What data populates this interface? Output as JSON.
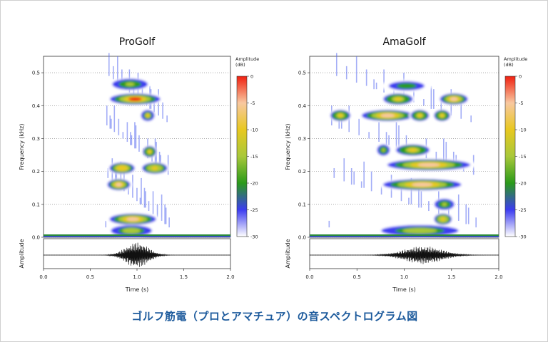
{
  "caption": "ゴルフ筋電（プロとアマチュア）の音スペクトログラム図",
  "colors": {
    "caption": "#1c5a9c",
    "colorbar_stops": [
      "#ffffff",
      "#3c3cf0",
      "#2a9a1a",
      "#a8c83a",
      "#e8c820",
      "#f8c8a0",
      "#f02010"
    ]
  },
  "chart_data": [
    {
      "type": "heatmap",
      "title": "ProGolf",
      "xlabel": "Time (s)",
      "ylabel": "Frequency (kHz)",
      "waveform_ylabel": "Amplitude",
      "xlim": [
        0.0,
        2.0
      ],
      "ylim": [
        0.0,
        0.55
      ],
      "x_ticks": [
        "0.0",
        "0.5",
        "1.0",
        "1.5",
        "2.0"
      ],
      "y_ticks": [
        "0.0",
        "0.1",
        "0.2",
        "0.3",
        "0.4",
        "0.5"
      ],
      "grid": "dotted horizontal",
      "colorbar": {
        "label": "Amplitude\n(dB)",
        "ticks": [
          "0",
          "-5",
          "-10",
          "-15",
          "-20",
          "-25",
          "-30"
        ],
        "range": [
          -30,
          0
        ]
      },
      "blobs": [
        {
          "t0": 0.66,
          "t1": 1.3,
          "f": 0.42,
          "db": -2
        },
        {
          "t0": 0.66,
          "t1": 1.25,
          "f": 0.055,
          "db": -3
        },
        {
          "t0": 0.66,
          "t1": 0.95,
          "f": 0.16,
          "db": -6
        },
        {
          "t0": 0.68,
          "t1": 1.0,
          "f": 0.21,
          "db": -8
        },
        {
          "t0": 1.03,
          "t1": 1.35,
          "f": 0.21,
          "db": -9
        },
        {
          "t0": 1.05,
          "t1": 1.22,
          "f": 0.26,
          "db": -10
        },
        {
          "t0": 1.03,
          "t1": 1.2,
          "f": 0.37,
          "db": -12
        },
        {
          "t0": 0.7,
          "t1": 1.15,
          "f": 0.465,
          "db": -16
        },
        {
          "t0": 0.68,
          "t1": 1.2,
          "f": 0.02,
          "db": -14
        }
      ],
      "waveform": {
        "center": 1.0,
        "width": 0.17,
        "amplitude": 1.0
      }
    },
    {
      "type": "heatmap",
      "title": "AmaGolf",
      "xlabel": "Time (s)",
      "ylabel": "Frequency (kHz)",
      "waveform_ylabel": "Amplitude",
      "xlim": [
        0.0,
        2.0
      ],
      "ylim": [
        0.0,
        0.55
      ],
      "x_ticks": [
        "0.0",
        "0.5",
        "1.0",
        "1.5",
        "2.0"
      ],
      "y_ticks": [
        "0.0",
        "0.1",
        "0.2",
        "0.3",
        "0.4",
        "0.5"
      ],
      "grid": "dotted horizontal",
      "colorbar": {
        "label": "Amplitude\n(dB)",
        "ticks": [
          "0",
          "-5",
          "-10",
          "-15",
          "-20",
          "-25",
          "-30"
        ],
        "range": [
          -30,
          0
        ]
      },
      "blobs": [
        {
          "t0": 0.74,
          "t1": 1.78,
          "f": 0.22,
          "db": -5
        },
        {
          "t0": 0.7,
          "t1": 1.68,
          "f": 0.16,
          "db": -3
        },
        {
          "t0": 0.5,
          "t1": 1.15,
          "f": 0.37,
          "db": -6
        },
        {
          "t0": 0.2,
          "t1": 0.45,
          "f": 0.37,
          "db": -11
        },
        {
          "t0": 1.05,
          "t1": 1.28,
          "f": 0.37,
          "db": -10
        },
        {
          "t0": 1.3,
          "t1": 1.5,
          "f": 0.37,
          "db": -11
        },
        {
          "t0": 0.75,
          "t1": 1.12,
          "f": 0.42,
          "db": -10
        },
        {
          "t0": 1.35,
          "t1": 1.7,
          "f": 0.42,
          "db": -7
        },
        {
          "t0": 0.88,
          "t1": 1.3,
          "f": 0.265,
          "db": -11
        },
        {
          "t0": 0.7,
          "t1": 0.86,
          "f": 0.265,
          "db": -15
        },
        {
          "t0": 1.3,
          "t1": 1.52,
          "f": 0.055,
          "db": -9
        },
        {
          "t0": 1.3,
          "t1": 1.55,
          "f": 0.1,
          "db": -16
        },
        {
          "t0": 0.75,
          "t1": 1.3,
          "f": 0.46,
          "db": -18
        },
        {
          "t0": 0.68,
          "t1": 1.65,
          "f": 0.02,
          "db": -14
        }
      ],
      "waveform": {
        "center": 1.2,
        "width": 0.28,
        "amplitude": 0.7
      }
    }
  ]
}
